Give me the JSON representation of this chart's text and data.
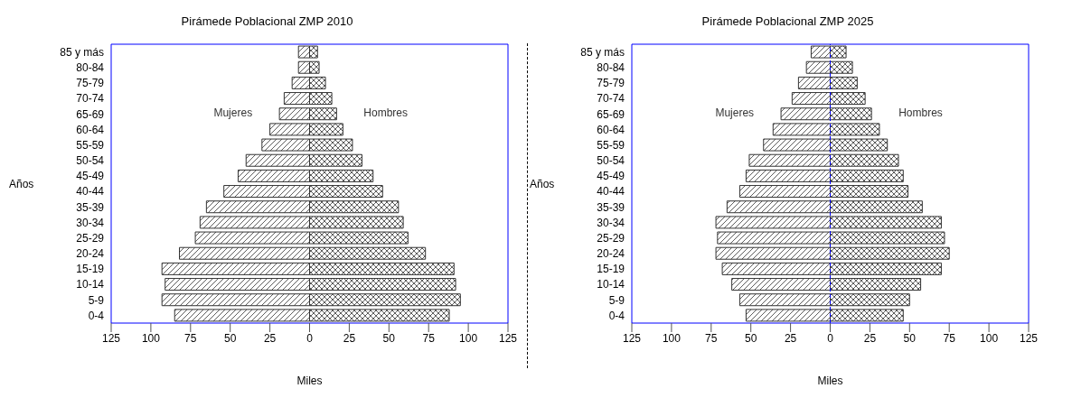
{
  "chart_data": [
    {
      "type": "bar",
      "orientation": "horizontal",
      "stacked": true,
      "title": "Pirámede Poblacional ZMP 2010",
      "xlabel": "Miles",
      "ylabel": "Años",
      "legend": false,
      "categories": [
        "85 y más",
        "80-84",
        "75-79",
        "70-74",
        "65-69",
        "60-64",
        "55-59",
        "50-54",
        "45-49",
        "40-44",
        "35-39",
        "30-34",
        "25-29",
        "20-24",
        "15-19",
        "10-14",
        "5-9",
        "0-4"
      ],
      "series": [
        {
          "name": "Mujeres",
          "color": "#333333",
          "values": [
            -7,
            -7,
            -11,
            -16,
            -19,
            -25,
            -30,
            -40,
            -45,
            -54,
            -65,
            -69,
            -72,
            -82,
            -93,
            -91,
            -93,
            -85
          ]
        },
        {
          "name": "Hombres",
          "color": "#333333",
          "values": [
            5,
            6,
            10,
            14,
            17,
            21,
            27,
            33,
            40,
            46,
            56,
            59,
            62,
            73,
            91,
            92,
            95,
            88
          ]
        }
      ],
      "xlim": [
        -125,
        125
      ],
      "xticks": [
        {
          "value": -125,
          "label": "125"
        },
        {
          "value": -100,
          "label": "100"
        },
        {
          "value": -75,
          "label": "75"
        },
        {
          "value": -50,
          "label": "50"
        },
        {
          "value": -25,
          "label": "25"
        },
        0,
        25,
        50,
        75,
        100,
        125
      ]
    },
    {
      "type": "bar",
      "orientation": "horizontal",
      "stacked": true,
      "title": "Pirámede Poblacional ZMP 2025",
      "xlabel": "Miles",
      "ylabel": "Años",
      "legend": false,
      "categories": [
        "85 y más",
        "80-84",
        "75-79",
        "70-74",
        "65-69",
        "60-64",
        "55-59",
        "50-54",
        "45-49",
        "40-44",
        "35-39",
        "30-34",
        "25-29",
        "20-24",
        "15-19",
        "10-14",
        "5-9",
        "0-4"
      ],
      "series": [
        {
          "name": "Mujeres",
          "color": "#333333",
          "values": [
            -12,
            -15,
            -20,
            -24,
            -31,
            -36,
            -42,
            -51,
            -53,
            -57,
            -65,
            -72,
            -71,
            -72,
            -68,
            -62,
            -57,
            -53
          ]
        },
        {
          "name": "Hombres",
          "color": "#333333",
          "values": [
            10,
            14,
            17,
            22,
            26,
            31,
            36,
            43,
            46,
            49,
            58,
            70,
            72,
            75,
            70,
            57,
            50,
            46
          ]
        }
      ],
      "xlim": [
        -125,
        125
      ],
      "xticks": [
        {
          "value": -125,
          "label": "125"
        },
        {
          "value": -100,
          "label": "100"
        },
        {
          "value": -75,
          "label": "75"
        },
        {
          "value": -50,
          "label": "50"
        },
        {
          "value": -25,
          "label": "25"
        },
        0,
        25,
        50,
        75,
        100,
        125
      ],
      "ref_lines": [
        {
          "axis": "x",
          "value": 0,
          "color": "#0000ff",
          "line_style": "dashed"
        }
      ]
    }
  ]
}
